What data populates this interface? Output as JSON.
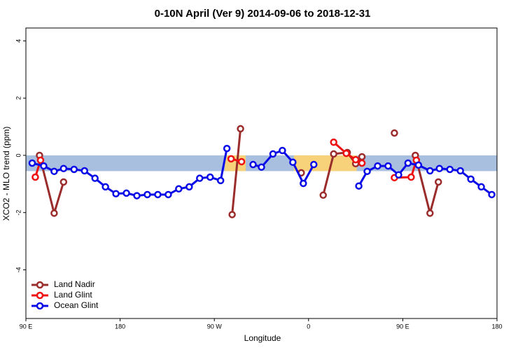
{
  "chart_data": {
    "type": "line",
    "title": "0-10N April (Ver 9)   2014-09-06 to 2018-12-31",
    "xlabel": "Longitude",
    "ylabel": "XCO2 - MLO trend (ppm)",
    "xlim": [
      90,
      540
    ],
    "ylim": [
      -5.7,
      4.45
    ],
    "xticks": [
      {
        "value": 90,
        "label": "90 E"
      },
      {
        "value": 180,
        "label": "180"
      },
      {
        "value": 270,
        "label": "90 W"
      },
      {
        "value": 360,
        "label": "0"
      },
      {
        "value": 450,
        "label": "90 E"
      },
      {
        "value": 540,
        "label": "180"
      }
    ],
    "yticks": [
      -4,
      -2,
      0,
      2,
      4
    ],
    "band": {
      "color": "#a8bfdf",
      "range": [
        -0.55,
        0
      ]
    },
    "highlights": {
      "color": "#f8d27a",
      "spans": [
        [
          280,
          300
        ],
        [
          346,
          406
        ]
      ]
    },
    "legend": "bottom-left",
    "series": [
      {
        "name": "Land Nadir",
        "color": "#9b2c2c",
        "x": [
          103,
          117,
          126,
          null,
          287,
          295,
          null,
          353,
          null,
          374,
          384,
          397,
          405,
          411,
          null,
          442,
          null,
          462,
          476,
          484
        ],
        "values": [
          0,
          -2.02,
          -0.93,
          null,
          -2.07,
          0.93,
          null,
          -0.61,
          null,
          -1.39,
          0.05,
          0.1,
          -0.29,
          -0.05,
          null,
          0.78,
          null,
          0,
          -2.02,
          -0.93
        ]
      },
      {
        "name": "Land Glint",
        "color": "#ee1111",
        "x": [
          99,
          104,
          null,
          286,
          296,
          null,
          384,
          396,
          405,
          411,
          null,
          442,
          458,
          463
        ],
        "values": [
          -0.76,
          -0.17,
          null,
          -0.12,
          -0.22,
          null,
          0.46,
          0.07,
          -0.15,
          -0.27,
          null,
          -0.78,
          -0.76,
          -0.17
        ]
      },
      {
        "name": "Ocean Glint",
        "color": "#0a0ae6",
        "x": [
          96,
          107,
          117,
          126,
          136,
          146,
          156,
          166,
          176,
          186,
          196,
          206,
          216,
          226,
          236,
          246,
          256,
          266,
          276,
          282,
          null,
          307,
          315,
          326,
          335,
          345,
          355,
          365,
          null,
          408,
          416,
          426,
          436,
          446,
          455,
          465,
          476,
          485,
          495,
          505,
          515,
          525,
          535
        ],
        "values": [
          -0.27,
          -0.37,
          -0.56,
          -0.46,
          -0.49,
          -0.54,
          -0.8,
          -1.1,
          -1.34,
          -1.32,
          -1.41,
          -1.37,
          -1.37,
          -1.37,
          -1.17,
          -1.1,
          -0.8,
          -0.76,
          -0.88,
          0.24,
          null,
          -0.32,
          -0.41,
          0.05,
          0.17,
          -0.24,
          -0.98,
          -0.32,
          null,
          -1.07,
          -0.56,
          -0.37,
          -0.37,
          -0.68,
          -0.27,
          -0.34,
          -0.54,
          -0.46,
          -0.49,
          -0.54,
          -0.83,
          -1.1,
          -1.37
        ]
      }
    ]
  }
}
